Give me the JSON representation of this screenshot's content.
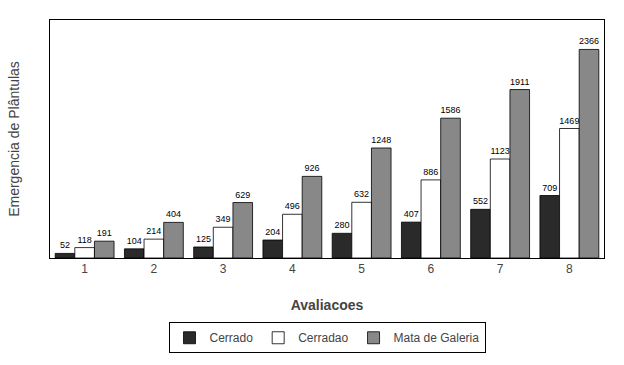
{
  "chart_data": {
    "type": "bar",
    "xlabel": "Avaliacoes",
    "ylabel": "Emergencia de Plântulas",
    "categories": [
      1,
      2,
      3,
      4,
      5,
      6,
      7,
      8
    ],
    "series": [
      {
        "name": "Cerrado",
        "color": "#2a2a2a",
        "values": [
          52,
          104,
          125,
          204,
          280,
          407,
          552,
          709
        ]
      },
      {
        "name": "Cerradao",
        "color": "#ffffff",
        "values": [
          118,
          214,
          349,
          496,
          632,
          886,
          1123,
          1469
        ]
      },
      {
        "name": "Mata de Galeria",
        "color": "#888888",
        "values": [
          191,
          404,
          629,
          926,
          1248,
          1586,
          1911,
          2366
        ]
      }
    ],
    "ylim": [
      0,
      2700
    ],
    "data_labels": true,
    "tick_labels": "x",
    "grid": false,
    "legend": "bottom"
  }
}
